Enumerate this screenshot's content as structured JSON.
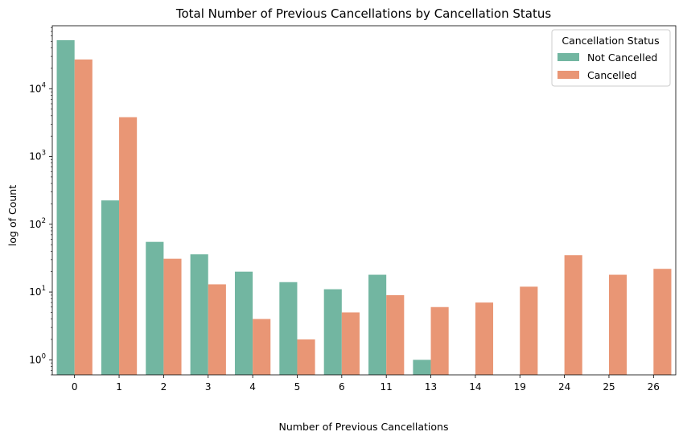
{
  "chart_data": {
    "type": "bar",
    "title": "Total Number of Previous Cancellations by Cancellation Status",
    "xlabel": "Number of Previous Cancellations",
    "ylabel": "log of Count",
    "yscale": "log",
    "ylim": [
      0.6,
      85000
    ],
    "yticks": [
      {
        "value": 1,
        "base": "10",
        "exp": "0"
      },
      {
        "value": 10,
        "base": "10",
        "exp": "1"
      },
      {
        "value": 100,
        "base": "10",
        "exp": "2"
      },
      {
        "value": 1000,
        "base": "10",
        "exp": "3"
      },
      {
        "value": 10000,
        "base": "10",
        "exp": "4"
      }
    ],
    "categories": [
      "0",
      "1",
      "2",
      "3",
      "4",
      "5",
      "6",
      "11",
      "13",
      "14",
      "19",
      "24",
      "25",
      "26"
    ],
    "series": [
      {
        "name": "Not Cancelled",
        "color": "#72b6a1",
        "values": [
          52000,
          225,
          55,
          36,
          20,
          14,
          11,
          18,
          1,
          null,
          null,
          null,
          null,
          null
        ]
      },
      {
        "name": "Cancelled",
        "color": "#e99675",
        "values": [
          27000,
          3800,
          31,
          13,
          4,
          2,
          5,
          9,
          6,
          7,
          12,
          35,
          18,
          22
        ]
      }
    ],
    "legend": {
      "title": "Cancellation Status",
      "position": "top-right"
    },
    "grid": false
  }
}
